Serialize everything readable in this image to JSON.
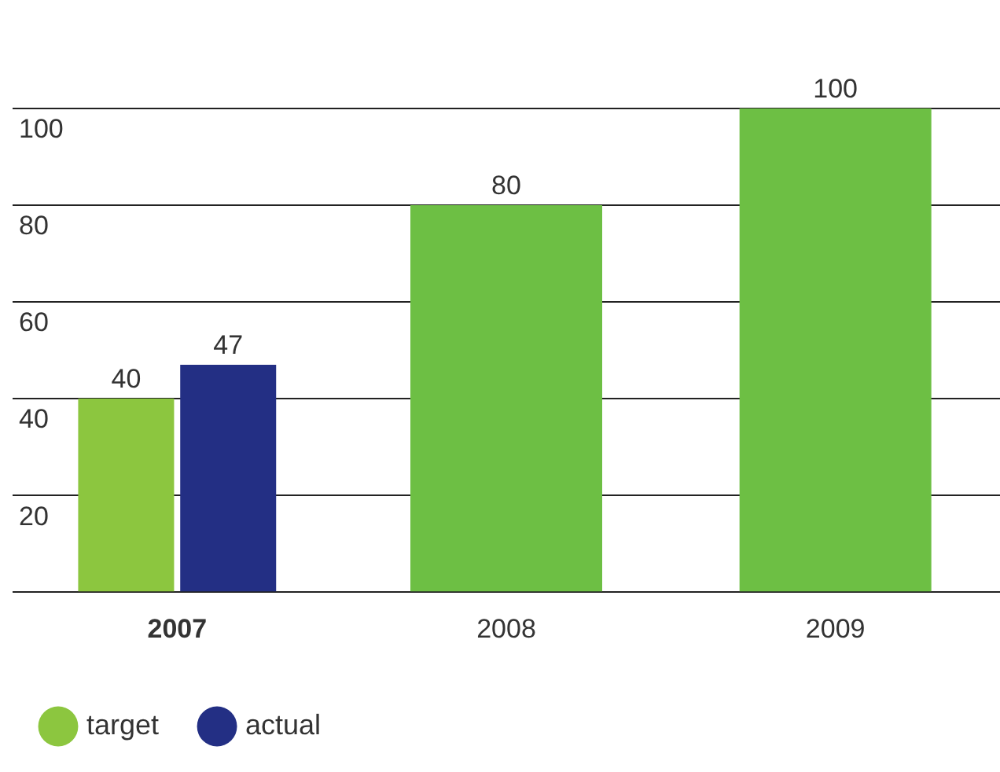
{
  "chart_data": {
    "type": "bar",
    "categories": [
      "2007",
      "2008",
      "2009"
    ],
    "series": [
      {
        "name": "target",
        "color": "#8cc63f",
        "colors": [
          "#8cc63f",
          "#6dbf44",
          "#6dbf44"
        ],
        "values": [
          40,
          80,
          100
        ]
      },
      {
        "name": "actual",
        "color": "#232f84",
        "values": [
          47,
          null,
          null
        ]
      }
    ],
    "ylim": [
      0,
      100
    ],
    "yticks": [
      {
        "value": 0,
        "label": null
      },
      20,
      40,
      60,
      80,
      100
    ],
    "grid": "y",
    "legend": "bottom left",
    "data_labels": true
  }
}
